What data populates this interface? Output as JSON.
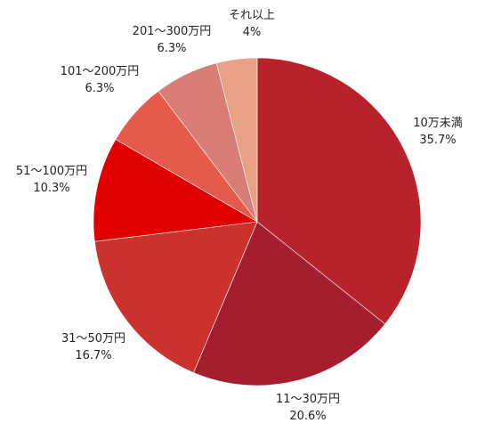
{
  "chart_data": {
    "type": "pie",
    "start_angle_deg": 0,
    "direction": "clockwise",
    "slices": [
      {
        "label": "10万未満",
        "value": 35.7,
        "value_text": "35.7%",
        "color": "#b8222a"
      },
      {
        "label": "11～30万円",
        "value": 20.6,
        "value_text": "20.6%",
        "color": "#a51e2f"
      },
      {
        "label": "31～50万円",
        "value": 16.7,
        "value_text": "16.7%",
        "color": "#cc322d"
      },
      {
        "label": "51～100万円",
        "value": 10.3,
        "value_text": "10.3%",
        "color": "#e00000"
      },
      {
        "label": "101～200万円",
        "value": 6.3,
        "value_text": "6.3%",
        "color": "#e65a4b"
      },
      {
        "label": "201～300万円",
        "value": 6.3,
        "value_text": "6.3%",
        "color": "#d97e76"
      },
      {
        "label": "それ以上",
        "value": 4,
        "value_text": "4%",
        "color": "#e8a185"
      }
    ]
  }
}
